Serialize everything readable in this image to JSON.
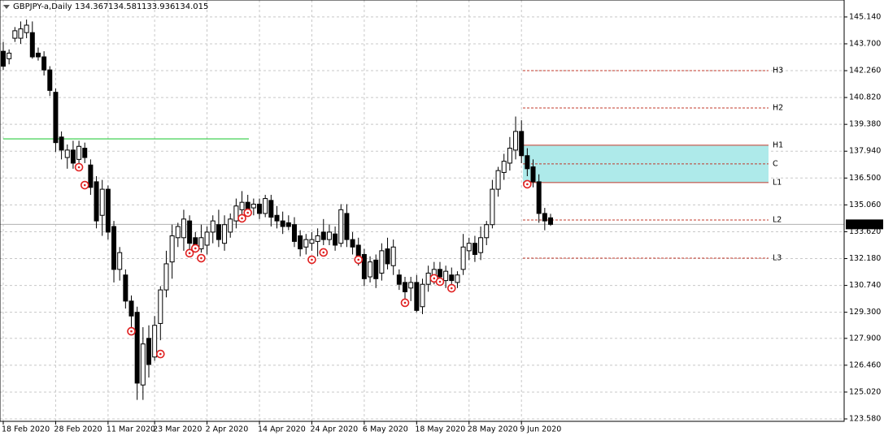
{
  "chart_data": {
    "type": "candlestick",
    "title": "GBPJPY-a,Daily",
    "categories": [
      "18 Feb 2020",
      null,
      null,
      null,
      null,
      null,
      null,
      null,
      null,
      "28 Feb 2020",
      null,
      null,
      null,
      null,
      null,
      null,
      null,
      null,
      "11 Mar 2020",
      null,
      null,
      null,
      null,
      null,
      null,
      null,
      "23 Mar 2020",
      null,
      null,
      null,
      null,
      null,
      null,
      null,
      null,
      "2 Apr 2020",
      null,
      null,
      null,
      null,
      null,
      null,
      null,
      null,
      "14 Apr 2020",
      null,
      null,
      null,
      null,
      null,
      null,
      null,
      null,
      "24 Apr 2020",
      null,
      null,
      null,
      null,
      null,
      null,
      null,
      null,
      "6 May 2020",
      null,
      null,
      null,
      null,
      null,
      null,
      null,
      null,
      "18 May 2020",
      null,
      null,
      null,
      null,
      null,
      null,
      null,
      null,
      "28 May 2020",
      null,
      null,
      null,
      null,
      null,
      null,
      null,
      null,
      "9 Jun 2020",
      null,
      null,
      null,
      null,
      null
    ],
    "open": [
      143.3,
      142.9,
      144.0,
      144.0,
      144.3,
      144.3,
      143.2,
      143.0,
      142.3,
      141.1,
      138.7,
      137.6,
      138.0,
      137.5,
      138.1,
      137.2,
      136.3,
      134.5,
      135.9,
      133.9,
      131.6,
      131.3,
      129.9,
      129.3,
      125.4,
      127.9,
      126.9,
      128.7,
      130.5,
      132.0,
      133.3,
      133.3,
      134.2,
      133.3,
      132.7,
      132.9,
      133.6,
      134.0,
      133.0,
      133.6,
      134.2,
      134.8,
      135.2,
      134.9,
      135.1,
      134.6,
      135.3,
      134.5,
      134.2,
      134.1,
      134.0,
      133.4,
      132.8,
      133.0,
      133.1,
      133.6,
      133.2,
      133.5,
      133.0,
      134.6,
      133.2,
      132.9,
      132.4,
      131.2,
      132.1,
      131.4,
      132.7,
      131.8,
      131.3,
      130.9,
      130.6,
      130.9,
      129.6,
      130.8,
      131.3,
      131.6,
      131.0,
      131.3,
      130.9,
      131.6,
      132.6,
      133.0,
      132.5,
      133.3,
      134.0,
      135.9,
      136.8,
      137.3,
      138.0,
      139.0,
      137.7,
      137.1,
      136.3,
      134.6,
      134.367
    ],
    "high": [
      143.8,
      143.4,
      144.6,
      144.9,
      145.0,
      144.9,
      143.5,
      143.3,
      142.5,
      141.3,
      139.0,
      138.3,
      138.5,
      138.5,
      138.4,
      137.5,
      136.6,
      136.4,
      136.1,
      134.2,
      132.8,
      131.6,
      130.2,
      129.6,
      128.5,
      128.6,
      129.1,
      130.7,
      132.6,
      134.0,
      134.1,
      134.8,
      134.5,
      133.6,
      134.0,
      133.9,
      134.5,
      134.8,
      134.5,
      134.6,
      135.4,
      135.8,
      135.6,
      135.4,
      135.4,
      135.6,
      135.6,
      135.0,
      134.7,
      134.5,
      134.4,
      133.7,
      133.5,
      133.6,
      133.8,
      134.3,
      134.0,
      133.9,
      135.1,
      135.1,
      133.6,
      133.3,
      132.7,
      132.3,
      132.4,
      133.0,
      133.3,
      133.2,
      131.6,
      131.2,
      131.2,
      131.3,
      131.1,
      131.8,
      132.0,
      132.0,
      131.8,
      131.7,
      131.5,
      133.5,
      133.3,
      133.4,
      133.9,
      134.2,
      136.4,
      137.1,
      137.8,
      138.7,
      139.8,
      139.6,
      138.1,
      137.5,
      136.7,
      134.9,
      134.581
    ],
    "low": [
      142.3,
      142.6,
      143.8,
      143.7,
      144.0,
      142.9,
      142.8,
      142.0,
      140.9,
      137.9,
      137.5,
      137.0,
      137.0,
      137.0,
      137.3,
      135.6,
      133.8,
      133.4,
      133.2,
      130.9,
      131.0,
      129.5,
      128.3,
      124.6,
      124.6,
      125.8,
      126.7,
      127.8,
      130.1,
      131.1,
      132.8,
      132.6,
      132.5,
      132.5,
      132.5,
      132.4,
      133.0,
      132.8,
      132.6,
      133.3,
      133.8,
      134.2,
      134.6,
      134.5,
      134.3,
      134.4,
      133.9,
      133.8,
      133.5,
      133.7,
      132.8,
      132.3,
      132.4,
      132.6,
      132.3,
      132.9,
      132.9,
      132.6,
      132.8,
      132.8,
      132.4,
      131.8,
      130.7,
      130.9,
      130.6,
      131.0,
      131.6,
      131.3,
      130.5,
      130.0,
      129.9,
      129.3,
      129.2,
      130.4,
      130.8,
      130.9,
      130.6,
      130.7,
      130.6,
      131.3,
      132.1,
      132.0,
      132.1,
      132.9,
      133.8,
      135.5,
      136.4,
      136.9,
      137.5,
      137.3,
      136.6,
      136.0,
      134.1,
      133.7,
      133.936
    ],
    "close": [
      142.5,
      143.2,
      144.4,
      144.5,
      144.7,
      143.0,
      143.0,
      142.3,
      141.2,
      138.4,
      138.0,
      138.0,
      137.3,
      138.2,
      137.6,
      136.0,
      134.2,
      135.9,
      133.6,
      131.6,
      132.5,
      129.9,
      129.1,
      125.5,
      127.6,
      126.5,
      128.6,
      130.5,
      131.9,
      133.4,
      133.9,
      134.3,
      133.0,
      132.8,
      133.3,
      133.6,
      134.2,
      133.2,
      134.0,
      134.3,
      135.0,
      135.2,
      134.8,
      135.1,
      134.6,
      135.4,
      134.4,
      134.2,
      133.9,
      133.9,
      133.1,
      132.7,
      133.2,
      133.2,
      133.4,
      133.2,
      133.6,
      132.9,
      134.8,
      133.2,
      132.8,
      132.2,
      131.1,
      132.0,
      131.1,
      132.6,
      131.9,
      132.8,
      130.8,
      130.4,
      130.9,
      129.4,
      130.8,
      131.4,
      131.6,
      131.2,
      131.5,
      131.0,
      131.3,
      132.8,
      133.0,
      132.4,
      133.3,
      134.0,
      135.9,
      136.9,
      137.4,
      138.1,
      139.0,
      137.7,
      137.0,
      136.3,
      134.6,
      134.2,
      134.015
    ],
    "ylim": [
      123.45,
      146.05
    ],
    "yticks": [
      {
        "value": 145.14,
        "label": "145.140"
      },
      {
        "value": 143.7,
        "label": "143.700"
      },
      {
        "value": 142.26,
        "label": "142.260"
      },
      {
        "value": 140.82,
        "label": "140.820"
      },
      {
        "value": 139.38,
        "label": "139.380"
      },
      {
        "value": 137.94,
        "label": "137.940"
      },
      {
        "value": 136.5,
        "label": "136.500"
      },
      {
        "value": 135.06,
        "label": "135.060"
      },
      {
        "value": 133.62,
        "label": "133.620"
      },
      {
        "value": 132.18,
        "label": "132.180"
      },
      {
        "value": 130.74,
        "label": "130.740"
      },
      {
        "value": 129.3,
        "label": "129.300"
      },
      {
        "value": 127.9,
        "label": "127.900"
      },
      {
        "value": 126.46,
        "label": "126.460"
      },
      {
        "value": 125.02,
        "label": "125.020"
      },
      {
        "value": 123.58,
        "label": "123.580"
      }
    ],
    "grid": true,
    "levels": [
      {
        "name": "H3",
        "value": 142.26,
        "style": "dashed"
      },
      {
        "name": "H2",
        "value": 140.26,
        "style": "dashed"
      },
      {
        "name": "H1",
        "value": 138.26,
        "style": "solid"
      },
      {
        "name": "C",
        "value": 137.26,
        "style": "dashed"
      },
      {
        "name": "L1",
        "value": 136.26,
        "style": "solid"
      },
      {
        "name": "L2",
        "value": 134.25,
        "style": "dashed"
      },
      {
        "name": "L3",
        "value": 132.2,
        "style": "dashed"
      }
    ],
    "level_color": "#c0392b",
    "zone_color": "#aeeaea",
    "support_line": {
      "value": 138.6,
      "color": "#2ecc40"
    },
    "signals": [
      {
        "bar": 13,
        "price": 137.08
      },
      {
        "bar": 14,
        "price": 136.12
      },
      {
        "bar": 22,
        "price": 128.28
      },
      {
        "bar": 27,
        "price": 127.06
      },
      {
        "bar": 32,
        "price": 132.47
      },
      {
        "bar": 33,
        "price": 132.73
      },
      {
        "bar": 34,
        "price": 132.2
      },
      {
        "bar": 41,
        "price": 134.34
      },
      {
        "bar": 42,
        "price": 134.64
      },
      {
        "bar": 53,
        "price": 132.12
      },
      {
        "bar": 55,
        "price": 132.51
      },
      {
        "bar": 61,
        "price": 132.12
      },
      {
        "bar": 69,
        "price": 129.81
      },
      {
        "bar": 74,
        "price": 131.12
      },
      {
        "bar": 75,
        "price": 130.94
      },
      {
        "bar": 77,
        "price": 130.59
      },
      {
        "bar": 90,
        "price": 136.17
      }
    ],
    "signal_color": "#e02020"
  }
}
